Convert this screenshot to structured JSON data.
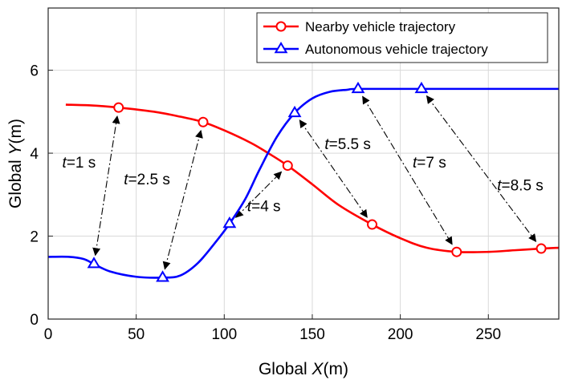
{
  "chart_data": {
    "type": "line",
    "xlabel": {
      "prefix": "Global ",
      "var": "X",
      "suffix": "(m)"
    },
    "ylabel": {
      "prefix": "Global ",
      "var": "Y",
      "suffix": "(m)"
    },
    "xlim": [
      0,
      290
    ],
    "ylim": [
      0,
      7.5
    ],
    "xticks": [
      0,
      50,
      100,
      150,
      200,
      250
    ],
    "yticks": [
      0,
      2,
      4,
      6
    ],
    "grid": true,
    "legend": "top-right",
    "series": [
      {
        "name": "Nearby vehicle trajectory",
        "color": "#ff0000",
        "marker": "circle",
        "x": [
          10,
          25,
          40,
          60,
          75,
          88,
          100,
          115,
          125,
          136,
          150,
          165,
          184,
          200,
          215,
          232,
          250,
          265,
          280,
          290
        ],
        "y": [
          5.17,
          5.15,
          5.1,
          5.0,
          4.88,
          4.75,
          4.55,
          4.25,
          4.0,
          3.7,
          3.25,
          2.75,
          2.28,
          1.95,
          1.72,
          1.62,
          1.62,
          1.66,
          1.7,
          1.72
        ],
        "marker_x": [
          40,
          88,
          136,
          184,
          232,
          280
        ],
        "marker_y": [
          5.1,
          4.75,
          3.7,
          2.28,
          1.62,
          1.7
        ]
      },
      {
        "name": "Autonomous vehicle trajectory",
        "color": "#0000ff",
        "marker": "triangle",
        "x": [
          0,
          12,
          20,
          26,
          35,
          50,
          65,
          75,
          85,
          95,
          103,
          112,
          120,
          130,
          140,
          150,
          160,
          170,
          176,
          212,
          290
        ],
        "y": [
          1.5,
          1.5,
          1.45,
          1.33,
          1.15,
          1.02,
          1.0,
          1.05,
          1.35,
          1.85,
          2.3,
          2.9,
          3.6,
          4.4,
          4.97,
          5.32,
          5.48,
          5.53,
          5.55,
          5.55,
          5.55
        ],
        "marker_x": [
          26,
          65,
          103,
          140,
          176,
          212
        ],
        "marker_y": [
          1.33,
          1.0,
          2.3,
          4.97,
          5.55,
          5.55
        ]
      }
    ],
    "annotations": [
      {
        "label": "=1 s",
        "var": "t",
        "text_x": 8,
        "text_y": 3.65,
        "from": [
          26,
          1.33
        ],
        "to": [
          40,
          5.1
        ]
      },
      {
        "label": "=2.5 s",
        "var": "t",
        "text_x": 43,
        "text_y": 3.25,
        "from": [
          65,
          1.0
        ],
        "to": [
          88,
          4.75
        ]
      },
      {
        "label": "=4 s",
        "var": "t",
        "text_x": 113,
        "text_y": 2.6,
        "from": [
          103,
          2.3
        ],
        "to": [
          136,
          3.7
        ]
      },
      {
        "label": "=5.5 s",
        "var": "t",
        "text_x": 157,
        "text_y": 4.1,
        "from": [
          140,
          4.97
        ],
        "to": [
          184,
          2.28
        ]
      },
      {
        "label": "=7 s",
        "var": "t",
        "text_x": 207,
        "text_y": 3.65,
        "from": [
          176,
          5.55
        ],
        "to": [
          232,
          1.62
        ]
      },
      {
        "label": "=8.5 s",
        "var": "t",
        "text_x": 255,
        "text_y": 3.1,
        "from": [
          212,
          5.55
        ],
        "to": [
          280,
          1.7
        ]
      }
    ]
  }
}
